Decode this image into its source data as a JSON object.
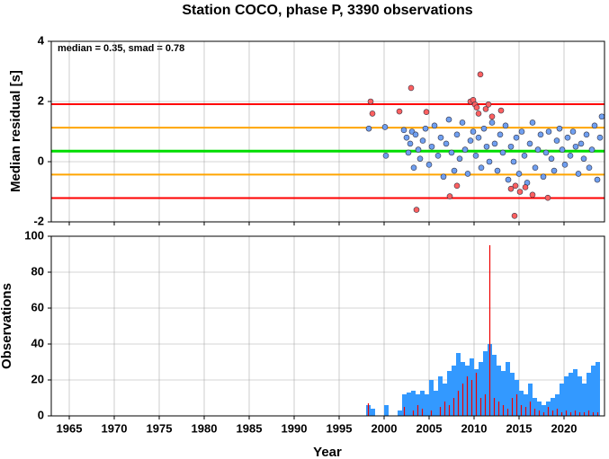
{
  "chart_data": [
    {
      "type": "scatter",
      "title": "Station COCO, phase P, 3390 observations",
      "ylabel": "Median residual [s]",
      "annotation": "median = 0.35, smad = 0.78",
      "xlim": [
        1963,
        2024.5
      ],
      "xticks": [
        1965,
        1970,
        1975,
        1980,
        1985,
        1990,
        1995,
        2000,
        2005,
        2010,
        2015,
        2020
      ],
      "ylim": [
        -2,
        4
      ],
      "yticks": [
        -2,
        0,
        2,
        4
      ],
      "grid": true,
      "reference_lines": [
        {
          "value": 1.91,
          "color": "#ff0000"
        },
        {
          "value": 1.13,
          "color": "#ffa500"
        },
        {
          "value": 0.35,
          "color": "#00dd00"
        },
        {
          "value": -0.43,
          "color": "#ffa500"
        },
        {
          "value": -1.21,
          "color": "#ff0000"
        }
      ],
      "series": [
        {
          "color": "#6f9ff0",
          "x": [
            1998.3,
            2000.1,
            2000.2,
            2002.2,
            2002.5,
            2002.7,
            2002.9,
            2003.1,
            2003.3,
            2003.5,
            2003.8,
            2004.0,
            2004.3,
            2004.6,
            2005.0,
            2005.3,
            2005.6,
            2006.0,
            2006.3,
            2006.6,
            2006.9,
            2007.2,
            2007.5,
            2007.8,
            2008.1,
            2008.4,
            2008.7,
            2009.0,
            2009.3,
            2009.6,
            2009.9,
            2010.2,
            2010.5,
            2010.8,
            2011.1,
            2011.4,
            2011.7,
            2012.0,
            2012.3,
            2012.6,
            2012.9,
            2013.2,
            2013.5,
            2013.8,
            2014.1,
            2014.4,
            2014.7,
            2015.0,
            2015.3,
            2015.6,
            2015.9,
            2016.2,
            2016.5,
            2016.8,
            2017.1,
            2017.4,
            2017.7,
            2018.0,
            2018.3,
            2018.6,
            2018.9,
            2019.2,
            2019.5,
            2019.8,
            2020.1,
            2020.4,
            2020.7,
            2021.0,
            2021.3,
            2021.6,
            2021.9,
            2022.2,
            2022.5,
            2022.8,
            2023.1,
            2023.4,
            2023.7,
            2024.0,
            2024.2
          ],
          "values": [
            1.1,
            1.15,
            0.2,
            1.05,
            0.8,
            0.3,
            0.6,
            1.0,
            -0.2,
            0.9,
            0.4,
            0.1,
            0.7,
            1.1,
            -0.1,
            0.5,
            1.2,
            0.2,
            0.8,
            -0.5,
            0.6,
            1.4,
            0.3,
            -0.3,
            0.9,
            0.1,
            1.3,
            0.4,
            -0.4,
            0.7,
            1.0,
            0.2,
            0.8,
            -0.2,
            1.1,
            0.5,
            0.0,
            1.3,
            0.6,
            -0.3,
            0.9,
            0.3,
            1.2,
            -0.6,
            0.5,
            0.0,
            0.8,
            -0.4,
            1.0,
            0.2,
            -0.7,
            0.6,
            1.3,
            -0.2,
            0.4,
            0.9,
            -0.5,
            0.3,
            1.0,
            0.1,
            -0.3,
            0.7,
            1.1,
            0.4,
            -0.1,
            0.8,
            0.2,
            1.0,
            0.5,
            -0.4,
            0.6,
            0.1,
            0.9,
            -0.2,
            0.4,
            1.2,
            -0.6,
            0.8,
            1.5
          ]
        },
        {
          "color": "#ff6060",
          "x": [
            1998.5,
            1998.7,
            2001.7,
            2003.0,
            2003.6,
            2004.7,
            2007.3,
            2008.1,
            2009.6,
            2009.9,
            2010.1,
            2010.3,
            2010.7,
            2010.5,
            2011.3,
            2011.6,
            2012.0,
            2013.0,
            2014.1,
            2014.5,
            2014.6,
            2015.1,
            2015.7,
            2016.5,
            2018.2
          ],
          "values": [
            2.0,
            1.6,
            1.67,
            2.45,
            -1.6,
            1.65,
            -1.15,
            -0.8,
            2.0,
            2.05,
            1.9,
            1.8,
            2.9,
            1.6,
            1.75,
            1.9,
            1.5,
            1.7,
            -0.9,
            -1.8,
            -0.8,
            -1.0,
            -0.85,
            -1.1,
            -1.2
          ]
        }
      ]
    },
    {
      "type": "histogram",
      "ylabel": "Observations",
      "xlabel": "Year",
      "xlim": [
        1963,
        2024.5
      ],
      "xticks": [
        1965,
        1970,
        1975,
        1980,
        1985,
        1990,
        1995,
        2000,
        2005,
        2010,
        2015,
        2020
      ],
      "ylim": [
        0,
        100
      ],
      "yticks": [
        0,
        20,
        40,
        60,
        80,
        100
      ],
      "grid": true,
      "bins": [
        1998,
        1998.5,
        1999,
        1999.5,
        2000,
        2000.5,
        2001,
        2001.5,
        2002,
        2002.5,
        2003,
        2003.5,
        2004,
        2004.5,
        2005,
        2005.5,
        2006,
        2006.5,
        2007,
        2007.5,
        2008,
        2008.5,
        2009,
        2009.5,
        2010,
        2010.5,
        2011,
        2011.5,
        2012,
        2012.5,
        2013,
        2013.5,
        2014,
        2014.5,
        2015,
        2015.5,
        2016,
        2016.5,
        2017,
        2017.5,
        2018,
        2018.5,
        2019,
        2019.5,
        2020,
        2020.5,
        2021,
        2021.5,
        2022,
        2022.5,
        2023,
        2023.5,
        2024
      ],
      "series": [
        {
          "color": "#3399ff",
          "values": [
            6,
            4,
            0,
            0,
            6,
            0,
            0,
            3,
            12,
            13,
            14,
            12,
            14,
            12,
            20,
            14,
            22,
            18,
            25,
            28,
            35,
            30,
            28,
            32,
            26,
            30,
            36,
            40,
            34,
            28,
            25,
            30,
            24,
            20,
            14,
            12,
            18,
            10,
            8,
            6,
            8,
            10,
            12,
            18,
            22,
            24,
            26,
            22,
            18,
            24,
            28,
            30
          ]
        },
        {
          "color": "#ee0000",
          "values": [
            7,
            0,
            0,
            0,
            0,
            0,
            0,
            0,
            5,
            0,
            3,
            6,
            4,
            0,
            3,
            0,
            5,
            8,
            6,
            10,
            14,
            18,
            22,
            20,
            24,
            10,
            12,
            95,
            10,
            8,
            6,
            4,
            10,
            12,
            6,
            5,
            8,
            4,
            3,
            2,
            5,
            3,
            4,
            2,
            3,
            2,
            3,
            2,
            2,
            3,
            2,
            2
          ]
        }
      ]
    }
  ]
}
